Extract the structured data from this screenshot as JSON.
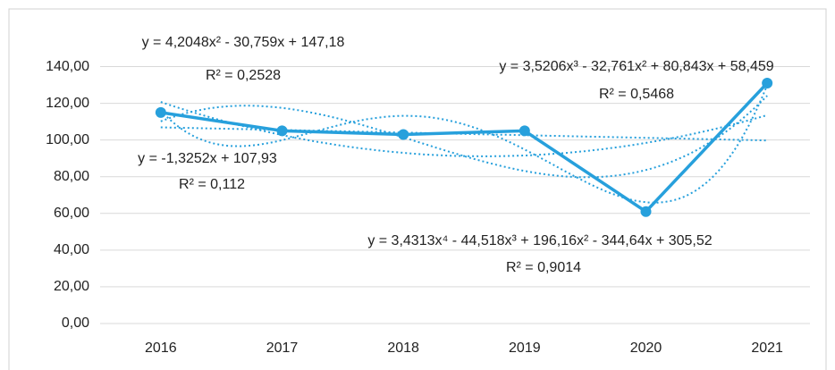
{
  "chart_data": {
    "type": "line",
    "categories": [
      "2016",
      "2017",
      "2018",
      "2019",
      "2020",
      "2021"
    ],
    "series": [
      {
        "color": "#27a0dc",
        "values": [
          115,
          105,
          103,
          105,
          61,
          131
        ]
      }
    ],
    "ylim": [
      0,
      150
    ],
    "yticks": [
      {
        "value": 0,
        "label": "0,00"
      },
      {
        "value": 20,
        "label": "20,00"
      },
      {
        "value": 40,
        "label": "40,00"
      },
      {
        "value": 60,
        "label": "60,00"
      },
      {
        "value": 80,
        "label": "80,00"
      },
      {
        "value": 100,
        "label": "100,00"
      },
      {
        "value": 120,
        "label": "120,00"
      },
      {
        "value": 140,
        "label": "140,00"
      }
    ],
    "grid": true,
    "trendline_degrees": [
      2,
      3,
      1,
      4
    ],
    "annotations": [
      [
        "y = 4,2048x² - 30,759x + 147,18",
        "R² = 0,2528"
      ],
      [
        "y = 3,5206x³ - 32,761x² + 80,843x + 58,459",
        "R² = 0,5468"
      ],
      [
        "y = -1,3252x + 107,93",
        "R² = 0,112"
      ],
      [
        "y = 3,4313x⁴ - 44,518x³ + 196,16x² - 344,64x + 305,52",
        "R² = 0,9014"
      ]
    ]
  }
}
